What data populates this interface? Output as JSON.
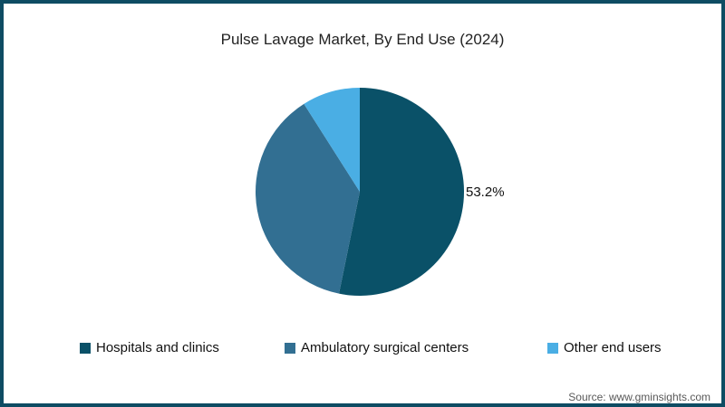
{
  "title": "Pulse Lavage Market, By End Use (2024)",
  "source": "Source: www.gminsights.com",
  "colors": {
    "frame_border": "#0e4c63",
    "title_text": "#222222",
    "source_text": "#595959",
    "label_text": "#111111"
  },
  "chart_data": {
    "type": "pie",
    "title": "Pulse Lavage Market, By End Use (2024)",
    "direction": "clockwise",
    "start_angle_deg": 0,
    "legend_position": "bottom",
    "shown_data_label": "53.2%",
    "segments": [
      {
        "label": "Hospitals and clinics",
        "value": 53.2,
        "color": "#0a5168",
        "data_label": "53.2%"
      },
      {
        "label": "Ambulatory surgical centers",
        "value": 37.8,
        "color": "#326f92",
        "data_label": ""
      },
      {
        "label": "Other end users",
        "value": 9.0,
        "color": "#4aaee4",
        "data_label": ""
      }
    ]
  }
}
